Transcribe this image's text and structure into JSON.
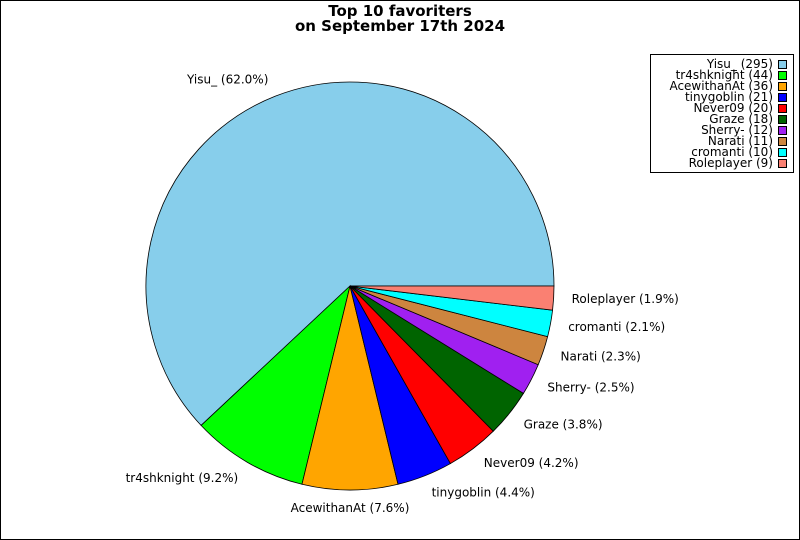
{
  "chart_data": {
    "type": "pie",
    "title_lines": [
      "Top 10 favoriters",
      "on September 17th 2024"
    ],
    "slices": [
      {
        "name": "Yisu_",
        "value": 295,
        "percent_label": "Yisu_ (62.0%)",
        "legend_label": "Yisu_ (295)",
        "color": "#87ceeb"
      },
      {
        "name": "tr4shknight",
        "value": 44,
        "percent_label": "tr4shknight (9.2%)",
        "legend_label": "tr4shknight (44)",
        "color": "#00ff00"
      },
      {
        "name": "AcewithanAt",
        "value": 36,
        "percent_label": "AcewithanAt (7.6%)",
        "legend_label": "AcewithanAt (36)",
        "color": "#ffa500"
      },
      {
        "name": "tinygoblin",
        "value": 21,
        "percent_label": "tinygoblin (4.4%)",
        "legend_label": "tinygoblin (21)",
        "color": "#0000ff"
      },
      {
        "name": "Never09",
        "value": 20,
        "percent_label": "Never09 (4.2%)",
        "legend_label": "Never09 (20)",
        "color": "#ff0000"
      },
      {
        "name": "Graze",
        "value": 18,
        "percent_label": "Graze (3.8%)",
        "legend_label": "Graze (18)",
        "color": "#006400"
      },
      {
        "name": "Sherry-",
        "value": 12,
        "percent_label": "Sherry- (2.5%)",
        "legend_label": "Sherry- (12)",
        "color": "#a020f0"
      },
      {
        "name": "Narati",
        "value": 11,
        "percent_label": "Narati (2.3%)",
        "legend_label": "Narati (11)",
        "color": "#cd853f"
      },
      {
        "name": "cromanti",
        "value": 10,
        "percent_label": "cromanti (2.1%)",
        "legend_label": "cromanti (10)",
        "color": "#00ffff"
      },
      {
        "name": "Roleplayer",
        "value": 9,
        "percent_label": "Roleplayer (1.9%)",
        "legend_label": "Roleplayer (9)",
        "color": "#fa8072"
      }
    ],
    "start_angle_deg": 0,
    "direction": "counterclockwise",
    "legend_position": "top-right"
  }
}
